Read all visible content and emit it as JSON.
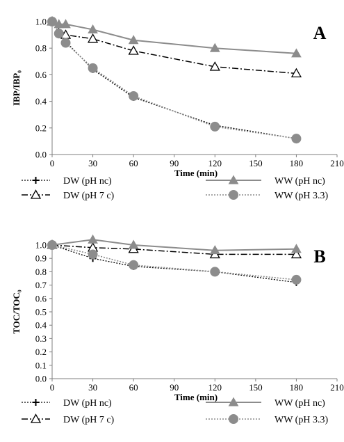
{
  "colors": {
    "dw_nc": "#000000",
    "dw_7c": "#000000",
    "ww_nc": "#8c8c8c",
    "ww_33": "#8c8c8c",
    "axis": "#7f7f7f"
  },
  "legend": [
    {
      "key": "dw_nc",
      "label": "DW (pH nc)",
      "marker": "plus",
      "dash": "dot"
    },
    {
      "key": "ww_nc",
      "label": "WW (pH nc)",
      "marker": "triangle-filled",
      "dash": "solid"
    },
    {
      "key": "dw_7c",
      "label": "DW (pH 7 c)",
      "marker": "triangle-open",
      "dash": "dashdot"
    },
    {
      "key": "ww_33",
      "label": "WW (pH 3.3)",
      "marker": "circle-filled",
      "dash": "dot"
    }
  ],
  "chart_data": [
    {
      "type": "line",
      "panel_label": "A",
      "xlabel": "Time (min)",
      "ylabel": "IBP/IBP₀",
      "xlim": [
        0,
        210
      ],
      "ylim": [
        0,
        1.0
      ],
      "xticks": [
        0,
        30,
        60,
        90,
        120,
        150,
        180,
        210
      ],
      "yticks": [
        "0.0",
        "0.2",
        "0.4",
        "0.6",
        "0.8",
        "1.0"
      ],
      "grid": false,
      "series": [
        {
          "name": "DW (pH nc)",
          "key": "dw_nc",
          "x": [
            0,
            5,
            10,
            30,
            60,
            120,
            180
          ],
          "y": [
            1.0,
            0.92,
            0.85,
            0.64,
            0.43,
            0.22,
            0.12
          ]
        },
        {
          "name": "DW (pH 7 c)",
          "key": "dw_7c",
          "x": [
            0,
            10,
            30,
            60,
            120,
            180
          ],
          "y": [
            1.0,
            0.9,
            0.87,
            0.78,
            0.66,
            0.61
          ]
        },
        {
          "name": "WW (pH nc)",
          "key": "ww_nc",
          "x": [
            0,
            5,
            10,
            30,
            60,
            120,
            180
          ],
          "y": [
            1.0,
            0.98,
            0.98,
            0.94,
            0.86,
            0.8,
            0.76
          ]
        },
        {
          "name": "WW (pH 3.3)",
          "key": "ww_33",
          "x": [
            0,
            5,
            10,
            30,
            60,
            120,
            180
          ],
          "y": [
            1.0,
            0.91,
            0.84,
            0.65,
            0.44,
            0.21,
            0.12
          ]
        }
      ]
    },
    {
      "type": "line",
      "panel_label": "B",
      "xlabel": "Time (min)",
      "ylabel": "TOC/TOC₀",
      "xlim": [
        0,
        210
      ],
      "ylim": [
        0,
        1.0
      ],
      "xticks": [
        0,
        30,
        60,
        90,
        120,
        150,
        180,
        210
      ],
      "yticks": [
        "0.0",
        "0.1",
        "0.2",
        "0.3",
        "0.4",
        "0.5",
        "0.6",
        "0.7",
        "0.8",
        "0.9",
        "1.0"
      ],
      "grid": false,
      "series": [
        {
          "name": "DW (pH nc)",
          "key": "dw_nc",
          "x": [
            0,
            30,
            60,
            120,
            180
          ],
          "y": [
            1.0,
            0.9,
            0.84,
            0.8,
            0.72
          ]
        },
        {
          "name": "DW (pH 7 c)",
          "key": "dw_7c",
          "x": [
            0,
            30,
            60,
            120,
            180
          ],
          "y": [
            1.0,
            0.98,
            0.97,
            0.93,
            0.93
          ]
        },
        {
          "name": "WW (pH nc)",
          "key": "ww_nc",
          "x": [
            0,
            30,
            60,
            120,
            180
          ],
          "y": [
            1.0,
            1.04,
            1.0,
            0.96,
            0.97
          ]
        },
        {
          "name": "WW (pH 3.3)",
          "key": "ww_33",
          "x": [
            0,
            30,
            60,
            120,
            180
          ],
          "y": [
            1.0,
            0.93,
            0.85,
            0.8,
            0.74
          ]
        }
      ]
    }
  ]
}
